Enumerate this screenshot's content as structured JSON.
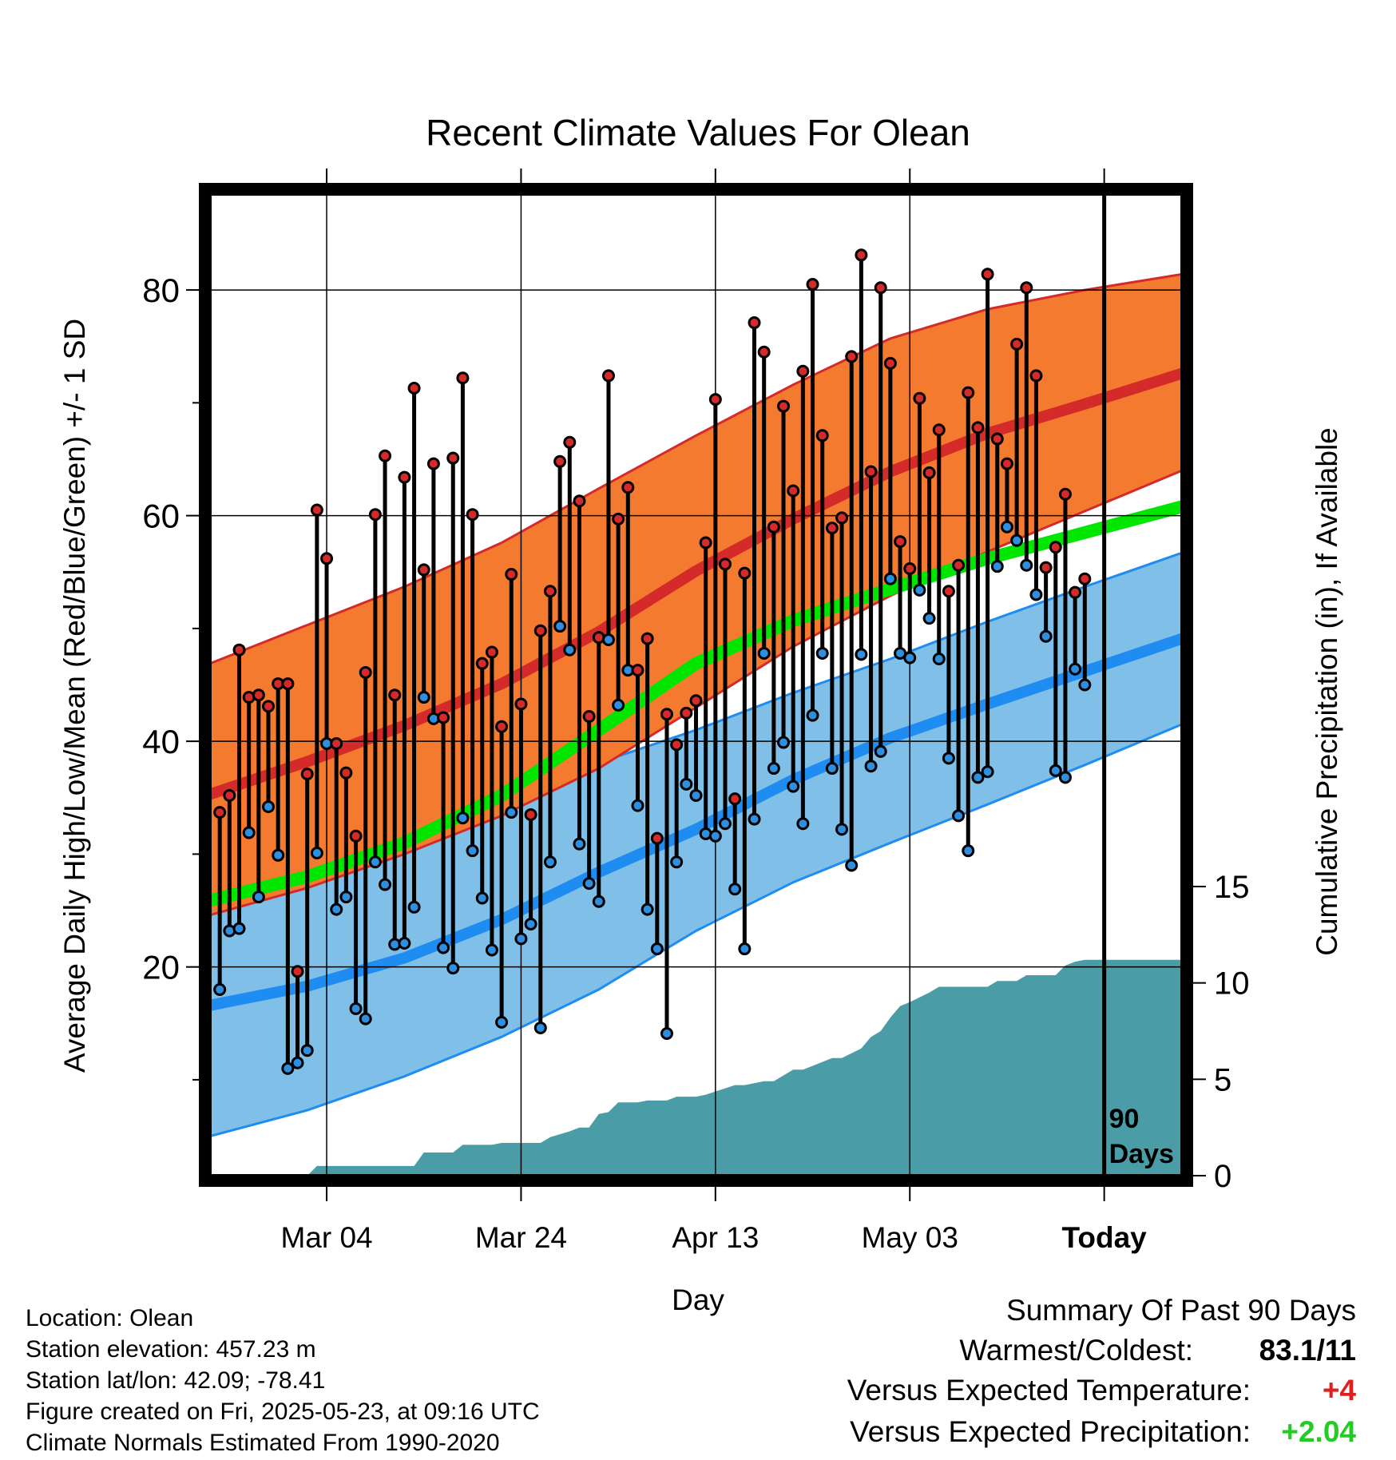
{
  "chart_data": {
    "type": "line",
    "title": "Recent Climate Values For Olean",
    "xlabel": "Day",
    "ylabel": "Average Daily High/Low/Mean (Red/Blue/Green) +/- 1 SD",
    "y2label": "Cumulative Precipitation (in), If Available",
    "xtick_labels": [
      "Mar 04",
      "Mar 24",
      "Apr 13",
      "May 03",
      "Today"
    ],
    "xtick_days": [
      12,
      32,
      52,
      72,
      92
    ],
    "ytick_labels": [
      "20",
      "40",
      "60",
      "80"
    ],
    "yticks": [
      20,
      40,
      60,
      80
    ],
    "ylim": [
      1.5,
      88.5
    ],
    "y2tick_labels": [
      "0",
      "5",
      "10",
      "15"
    ],
    "y2ticks": [
      0,
      5,
      10,
      15
    ],
    "y2lim": [
      0,
      15
    ],
    "xlim": [
      0,
      100
    ],
    "today_day": 92,
    "today_label": "90 Days",
    "normals": {
      "day": [
        0,
        10,
        20,
        30,
        40,
        50,
        60,
        70,
        80,
        90,
        100
      ],
      "mean_high": [
        35.3,
        38.2,
        41.4,
        45.1,
        49.7,
        55.1,
        59.7,
        63.9,
        67.3,
        69.9,
        72.6
      ],
      "high_sd_upper": [
        46.9,
        50.3,
        53.7,
        57.6,
        62.4,
        67.1,
        71.6,
        75.7,
        78.3,
        80.0,
        81.4
      ],
      "high_sd_lower": [
        24.6,
        27.0,
        30.0,
        33.4,
        37.6,
        43.0,
        48.4,
        52.9,
        56.8,
        60.4,
        64.0
      ],
      "mean_temp": [
        25.9,
        28.0,
        31.0,
        35.2,
        41.0,
        46.9,
        50.7,
        53.5,
        56.2,
        58.5,
        60.8
      ],
      "mean_low": [
        16.6,
        18.3,
        20.8,
        24.2,
        28.4,
        32.2,
        36.6,
        40.3,
        43.3,
        46.2,
        49.1
      ],
      "low_sd_upper": [
        27.9,
        29.1,
        31.2,
        34.8,
        38.1,
        41.0,
        44.3,
        47.3,
        50.6,
        53.7,
        56.7
      ],
      "low_sd_lower": [
        5.0,
        7.3,
        10.3,
        13.8,
        18.0,
        23.2,
        27.5,
        31.0,
        34.4,
        37.9,
        41.5
      ]
    },
    "series": [
      {
        "name": "High",
        "day": [
          1,
          2,
          3,
          4,
          5,
          6,
          7,
          8,
          9,
          10,
          11,
          12,
          13,
          14,
          15,
          16,
          17,
          18,
          19,
          20,
          21,
          22,
          23,
          24,
          25,
          26,
          27,
          28,
          29,
          30,
          31,
          32,
          33,
          34,
          35,
          36,
          37,
          38,
          39,
          40,
          41,
          42,
          43,
          44,
          45,
          46,
          47,
          48,
          49,
          50,
          51,
          52,
          53,
          54,
          55,
          56,
          57,
          58,
          59,
          60,
          61,
          62,
          63,
          64,
          65,
          66,
          67,
          68,
          69,
          70,
          71,
          72,
          73,
          74,
          75,
          76,
          77,
          78,
          79,
          80,
          81,
          82,
          83,
          84,
          85,
          86,
          87,
          88,
          89,
          90
        ],
        "values": [
          33.7,
          35.2,
          48.1,
          43.9,
          44.1,
          43.1,
          45.1,
          45.1,
          19.6,
          37.1,
          60.5,
          56.2,
          39.8,
          37.2,
          31.6,
          46.1,
          60.1,
          65.3,
          44.1,
          63.4,
          71.3,
          55.2,
          64.6,
          42.1,
          65.1,
          72.2,
          60.1,
          46.9,
          47.9,
          41.3,
          54.8,
          43.3,
          33.5,
          49.8,
          53.3,
          64.8,
          66.5,
          61.3,
          42.2,
          49.2,
          72.4,
          59.7,
          62.5,
          46.3,
          49.1,
          31.4,
          42.4,
          39.7,
          42.5,
          43.6,
          57.6,
          70.3,
          55.7,
          34.9,
          54.9,
          77.1,
          74.5,
          59.0,
          69.7,
          62.2,
          72.8,
          80.5,
          67.1,
          58.9,
          59.8,
          74.1,
          83.1,
          63.9,
          80.2,
          73.5,
          57.7,
          55.3,
          70.4,
          63.8,
          67.6,
          53.3,
          55.6,
          70.9,
          67.8,
          81.4,
          66.8,
          64.6,
          75.2,
          80.2,
          72.4,
          55.4,
          57.2,
          61.9,
          53.2,
          54.4
        ]
      },
      {
        "name": "Low",
        "day": [
          1,
          2,
          3,
          4,
          5,
          6,
          7,
          8,
          9,
          10,
          11,
          12,
          13,
          14,
          15,
          16,
          17,
          18,
          19,
          20,
          21,
          22,
          23,
          24,
          25,
          26,
          27,
          28,
          29,
          30,
          31,
          32,
          33,
          34,
          35,
          36,
          37,
          38,
          39,
          40,
          41,
          42,
          43,
          44,
          45,
          46,
          47,
          48,
          49,
          50,
          51,
          52,
          53,
          54,
          55,
          56,
          57,
          58,
          59,
          60,
          61,
          62,
          63,
          64,
          65,
          66,
          67,
          68,
          69,
          70,
          71,
          72,
          73,
          74,
          75,
          76,
          77,
          78,
          79,
          80,
          81,
          82,
          83,
          84,
          85,
          86,
          87,
          88,
          89,
          90
        ],
        "values": [
          18.0,
          23.2,
          23.4,
          31.9,
          26.2,
          34.2,
          29.9,
          11.0,
          11.5,
          12.6,
          30.1,
          39.8,
          25.1,
          26.2,
          16.3,
          15.4,
          29.3,
          27.3,
          22.0,
          22.1,
          25.3,
          43.9,
          42.0,
          21.7,
          19.9,
          33.2,
          30.3,
          26.1,
          21.5,
          15.1,
          33.7,
          22.5,
          23.8,
          14.6,
          29.3,
          50.2,
          48.1,
          30.9,
          27.4,
          25.8,
          49.0,
          43.2,
          46.3,
          34.3,
          25.1,
          21.6,
          14.1,
          29.3,
          36.2,
          35.2,
          31.8,
          31.6,
          32.7,
          26.9,
          21.6,
          33.1,
          47.8,
          37.6,
          39.9,
          36.0,
          32.7,
          42.3,
          47.8,
          37.6,
          32.2,
          29.0,
          47.7,
          37.8,
          39.1,
          54.4,
          47.8,
          47.4,
          53.4,
          50.9,
          47.3,
          38.5,
          33.4,
          30.3,
          36.8,
          37.3,
          55.5,
          59.0,
          57.8,
          55.6,
          53.0,
          49.3,
          37.4,
          36.8,
          46.4,
          45.0
        ]
      }
    ],
    "precip_cumulative": {
      "day": [
        0,
        10,
        11,
        21,
        22,
        25,
        26,
        29,
        30,
        34,
        35,
        37,
        38,
        39,
        40,
        41,
        42,
        44,
        45,
        47,
        48,
        50,
        51,
        54,
        55,
        57,
        58,
        60,
        61,
        64,
        65,
        67,
        68,
        69,
        70,
        71,
        72,
        74,
        75,
        80,
        81,
        83,
        84,
        87,
        88,
        89,
        90,
        100
      ],
      "values": [
        0,
        0,
        0.5,
        0.5,
        1.2,
        1.2,
        1.6,
        1.6,
        1.7,
        1.7,
        2.0,
        2.3,
        2.5,
        2.5,
        3.2,
        3.3,
        3.8,
        3.8,
        3.9,
        3.9,
        4.1,
        4.1,
        4.2,
        4.7,
        4.7,
        4.9,
        4.9,
        5.5,
        5.5,
        6.1,
        6.1,
        6.6,
        7.2,
        7.5,
        8.2,
        8.8,
        9.0,
        9.5,
        9.8,
        9.8,
        10.1,
        10.1,
        10.4,
        10.4,
        10.9,
        11.1,
        11.2,
        11.2
      ]
    },
    "legend": "none",
    "grid": true
  },
  "footer": {
    "location": "Location: Olean",
    "elevation": "Station elevation: 457.23 m",
    "latlon": "Station lat/lon: 42.09; -78.41",
    "created": "Figure created on Fri, 2025-05-23, at 09:16 UTC",
    "normals": "Climate Normals Estimated From 1990-2020"
  },
  "summary": {
    "title": "Summary Of Past 90 Days",
    "warmest_label": "Warmest/Coldest:",
    "warmest_value": "83.1/11",
    "temp_label": "Versus Expected Temperature:",
    "temp_value": "+4",
    "precip_label": "Versus Expected Precipitation:",
    "precip_value": "+2.04"
  },
  "colors": {
    "high_band": "#f47a30",
    "high_line": "#d42a2a",
    "mean_line": "#00e600",
    "low_band": "#80c0e8",
    "low_line": "#1e8cf0",
    "precip": "#4a9ca6",
    "high_dot": "#d42a2a",
    "low_dot": "#2e8ee0",
    "temp_plus": "#e02020",
    "precip_plus": "#22cc22"
  }
}
